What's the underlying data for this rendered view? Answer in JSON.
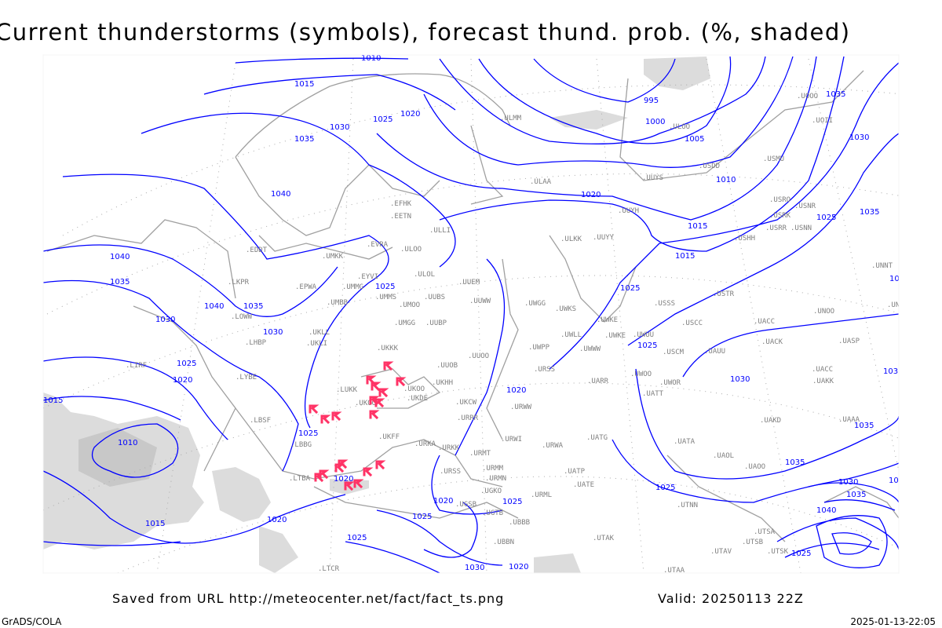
{
  "title": "Current thunderstorms (symbols), forecast thund. prob. (%, shaded)",
  "footer": {
    "saved_from": "Saved from URL http://meteocenter.net/fact/fact_ts.png",
    "valid": "Valid: 20250113 22Z",
    "credit": "GrADS/COLA",
    "timestamp": "2025-01-13-22:05"
  },
  "colors": {
    "isobar": "#0000ff",
    "coastline": "#a0a0a0",
    "station_label": "#808080",
    "thunderstorm_symbol": "#ff3366",
    "probability_shading": "#d8d8d8"
  },
  "layers": {
    "isobars": "mean sea level pressure contours (hPa)",
    "symbols": "current thunderstorms",
    "shading": "forecast thunderstorm probability"
  },
  "isobar_labels": [
    "1010",
    "1015",
    "1025",
    "1020",
    "1030",
    "1035",
    "1040",
    "1040",
    "1035",
    "1030",
    "1040",
    "1035",
    "1030",
    "1025",
    "1020",
    "1015",
    "1010",
    "1025",
    "1020",
    "1020",
    "1015",
    "1025",
    "1030",
    "1035",
    "1025",
    "1025",
    "995",
    "1000",
    "1005",
    "1010",
    "1015",
    "1020",
    "1015",
    "1020",
    "1025",
    "1030",
    "1035",
    "1025",
    "1030",
    "1035",
    "1030",
    "1040",
    "1035",
    "1030",
    "1025",
    "1020",
    "1040",
    "1035",
    "1030",
    "1025",
    "1025",
    "1020",
    "1025"
  ],
  "stations": [
    "ULMM",
    "ULAA",
    "UUYS",
    "UUYH",
    "ULKK",
    "UUYY",
    "ULOO",
    "USDD",
    "USMU",
    "USRO",
    "USRK",
    "USNR",
    "USRR",
    "USNN",
    "USHH",
    "UOOO",
    "UOII",
    "EFHK",
    "EETN",
    "ULLI",
    "EVRA",
    "ULOO",
    "UMKK",
    "EDDT",
    "EYVI",
    "ULOL",
    "UUEM",
    "UMMG",
    "UMMS",
    "UMOO",
    "UUBS",
    "UUWW",
    "UWGG",
    "UWKS",
    "USSS",
    "USTR",
    "UNNT",
    "UNBB",
    "LKPR",
    "EPWA",
    "UMBB",
    "LOWW",
    "UMGG",
    "UUBP",
    "UWKE",
    "USCC",
    "UACC",
    "UNOO",
    "UKLL",
    "UKLI",
    "UKKK",
    "LHBP",
    "UWPP",
    "UWLL",
    "UWKE",
    "UWUU",
    "USCM",
    "UAUU",
    "UACK",
    "UASP",
    "LIRF",
    "UUOB",
    "UUOO",
    "URSS",
    "UWWW",
    "UWOO",
    "UACC",
    "UKHH",
    "UKOO",
    "LUKK",
    "LYBE",
    "UKDE",
    "UKOO",
    "UKCW",
    "URRR",
    "UATT",
    "UWOR",
    "UARR",
    "URWW",
    "UAKK",
    "UAKD",
    "UAAA",
    "LBSF",
    "LBBG",
    "UKFF",
    "URKA",
    "URKK",
    "URWI",
    "UATG",
    "UATA",
    "UAOL",
    "UAOO",
    "URMT",
    "URWA",
    "URMM",
    "URSS",
    "URMN",
    "UATP",
    "UATE",
    "URML",
    "LTBA",
    "UGSB",
    "UGKO",
    "UGTB",
    "UBBB",
    "UTNN",
    "UTSA",
    "UTSB",
    "UTAV",
    "UTSK",
    "UTAA",
    "UTAK",
    "UBBN",
    "LTCR"
  ],
  "thunderstorm_count": 19
}
